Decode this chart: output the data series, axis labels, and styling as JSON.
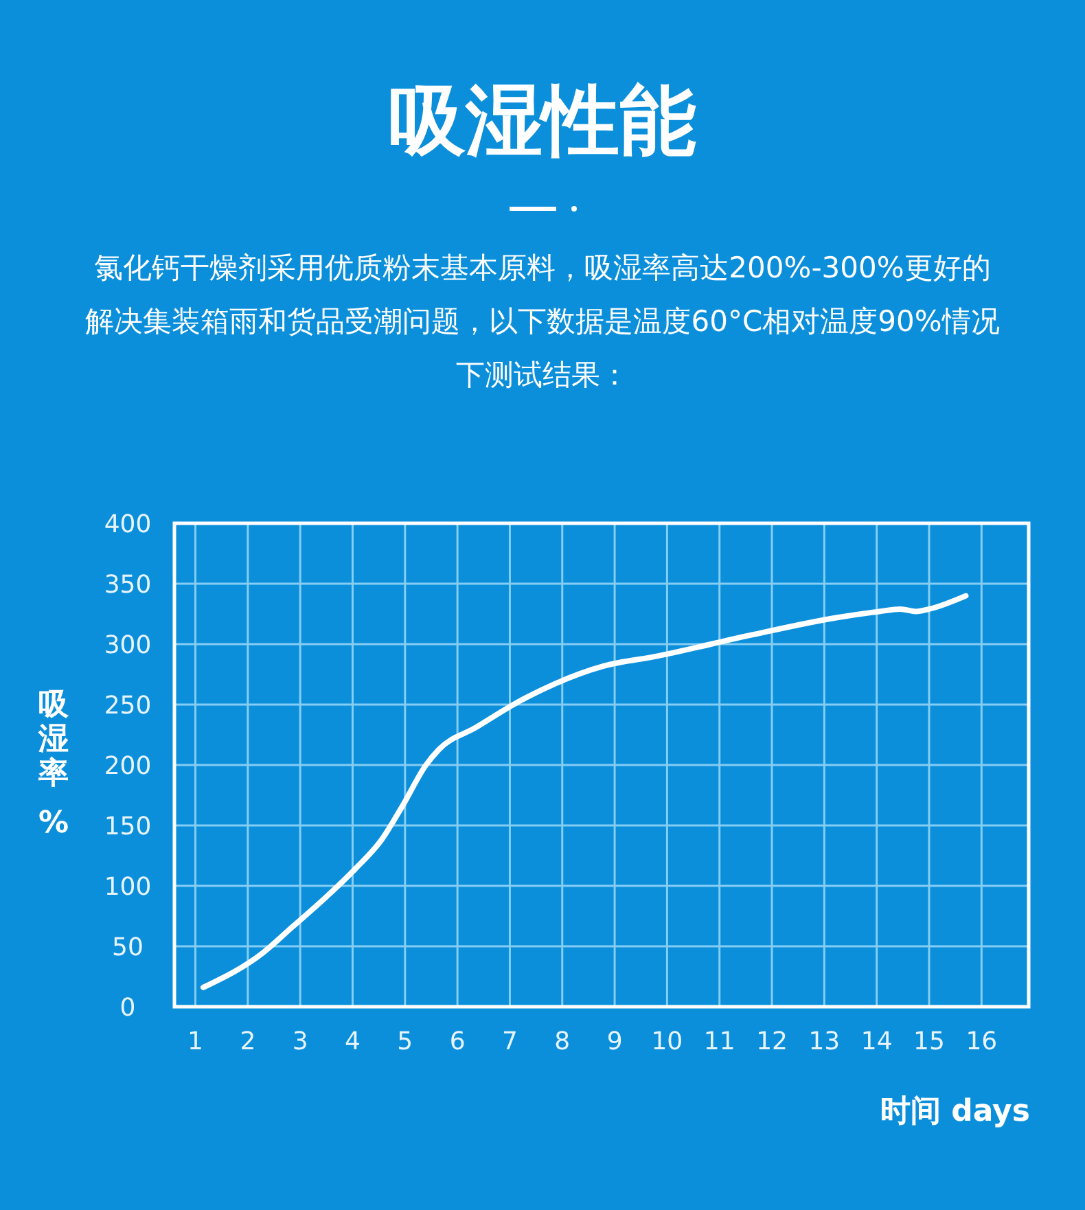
{
  "chart_data": {
    "type": "line",
    "title": "吸湿性能",
    "subtitle": "氯化钙干燥剂采用优质粉末基本原料，吸湿率高达200%-300%更好的解决集装箱雨和货品受潮问题，以下数据是温度60°C相对温度90%情况下测试结果：",
    "xlabel": "时间 days",
    "ylabel": "吸湿率%",
    "series": [
      {
        "color": "#ffffff",
        "x": [
          1.15,
          2.3,
          2.85,
          3.5,
          4.05,
          4.55,
          4.95,
          5.4,
          5.65,
          6.35,
          7.15,
          7.85,
          8.8,
          9.8,
          11.55,
          13.25,
          14.05,
          14.45,
          14.75,
          15,
          15.7
        ],
        "values": [
          16,
          45,
          66,
          91,
          114,
          138,
          166,
          200,
          213,
          231,
          252,
          267,
          282,
          290,
          307,
          322,
          327,
          329,
          327,
          329,
          340
        ]
      }
    ],
    "xlim": [
      0.6,
      16.9
    ],
    "xticks": [
      1,
      2,
      3,
      4,
      5,
      6,
      7,
      8,
      9,
      10,
      11,
      12,
      13,
      14,
      15,
      16
    ],
    "ylim": [
      0,
      400
    ],
    "yticks": [
      0,
      50,
      100,
      150,
      200,
      250,
      300,
      350,
      400
    ],
    "grid": true,
    "line_style": "solid"
  }
}
